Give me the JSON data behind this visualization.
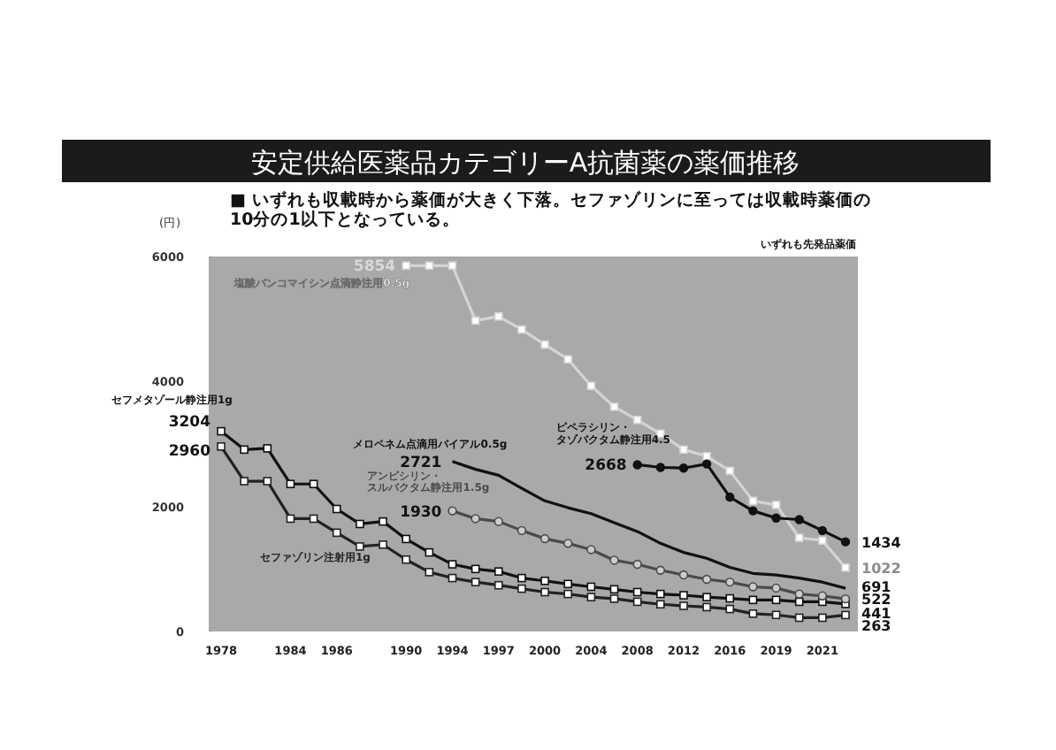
{
  "chart_data": {
    "type": "line",
    "title": "安定供給医薬品カテゴリーA抗菌薬の薬価推移",
    "ylabel": "(円)",
    "annotations": [
      "■ いずれも収載時から薬価が大きく下落。セファゾリンに至っては収載時薬価の\n10分の1以下となっている。",
      "いずれも先発品薬価"
    ],
    "categories": [
      "1978",
      null,
      null,
      "1984",
      null,
      "1986",
      null,
      null,
      "1990",
      null,
      "1994",
      null,
      "1997",
      null,
      "2000",
      null,
      "2004",
      null,
      "2008",
      null,
      "2012",
      null,
      "2016",
      null,
      "2019",
      null,
      "2021",
      null
    ],
    "ylim": [
      0,
      6000
    ],
    "yticks": [
      0,
      2000,
      4000,
      6000
    ],
    "grid": false,
    "marker": "square",
    "series": [
      {
        "name": "塩酸バンコマイシン点滴静注用0.5g",
        "color": "#d4d4d4",
        "values": [
          null,
          null,
          null,
          null,
          null,
          null,
          null,
          null,
          5854,
          5854,
          5854,
          4975,
          5040,
          4830,
          4590,
          4355,
          3930,
          3595,
          3385,
          3165,
          2910,
          2805,
          2570,
          2090,
          2025,
          1500,
          1455,
          1022
        ],
        "value_labels": [
          null,
          null,
          null,
          null,
          null,
          null,
          null,
          null,
          "5854",
          null,
          null,
          null,
          null,
          null,
          null,
          null,
          null,
          null,
          null,
          null,
          null,
          null,
          null,
          null,
          null,
          null,
          null,
          "1022"
        ]
      },
      {
        "name": "セフメタゾール静注用1g",
        "color": "#111111",
        "values": [
          3204,
          2910,
          2930,
          2360,
          2360,
          1960,
          1720,
          1760,
          1480,
          1265,
          1075,
          1000,
          960,
          855,
          810,
          760,
          715,
          675,
          630,
          600,
          580,
          550,
          530,
          505,
          505,
          475,
          475,
          441
        ],
        "value_labels": [
          "3204",
          null,
          null,
          null,
          null,
          null,
          null,
          null,
          null,
          null,
          null,
          null,
          null,
          null,
          null,
          null,
          null,
          null,
          null,
          null,
          null,
          null,
          null,
          null,
          null,
          null,
          null,
          "441"
        ]
      },
      {
        "name": "セファゾリン注射用1g",
        "color": "#222222",
        "values": [
          2960,
          2405,
          2405,
          1805,
          1805,
          1580,
          1360,
          1390,
          1150,
          950,
          855,
          790,
          740,
          685,
          630,
          600,
          550,
          525,
          475,
          435,
          410,
          390,
          360,
          285,
          265,
          220,
          220,
          263
        ],
        "value_labels": [
          "2960",
          null,
          null,
          null,
          null,
          null,
          null,
          null,
          null,
          null,
          null,
          null,
          null,
          null,
          null,
          null,
          null,
          null,
          null,
          null,
          null,
          null,
          null,
          null,
          null,
          null,
          null,
          "263"
        ]
      },
      {
        "name": "メロペネム点滴用バイアル0.5g",
        "color": "#111111",
        "marker": "none",
        "values": [
          null,
          null,
          null,
          null,
          null,
          null,
          null,
          null,
          null,
          null,
          2721,
          2595,
          2500,
          2290,
          2090,
          1980,
          1885,
          1740,
          1600,
          1410,
          1265,
          1170,
          1025,
          930,
          905,
          855,
          790,
          691
        ],
        "value_labels": [
          null,
          null,
          null,
          null,
          null,
          null,
          null,
          null,
          null,
          null,
          "2721",
          null,
          null,
          null,
          null,
          null,
          null,
          null,
          null,
          null,
          null,
          null,
          null,
          null,
          null,
          null,
          null,
          "691"
        ]
      },
      {
        "name": "アンピシリン・スルバクタム静注用1.5g",
        "color": "#4a4a4a",
        "marker": "circle",
        "values": [
          null,
          null,
          null,
          null,
          null,
          null,
          null,
          null,
          null,
          null,
          1930,
          1805,
          1760,
          1615,
          1485,
          1410,
          1310,
          1140,
          1075,
          980,
          905,
          835,
          790,
          715,
          695,
          600,
          570,
          522
        ],
        "value_labels": [
          null,
          null,
          null,
          null,
          null,
          null,
          null,
          null,
          null,
          null,
          "1930",
          null,
          null,
          null,
          null,
          null,
          null,
          null,
          null,
          null,
          null,
          null,
          null,
          null,
          null,
          null,
          null,
          "522"
        ]
      },
      {
        "name": "ピペラシリン・タゾバクタム静注用4.5",
        "color": "#111111",
        "marker": "circle",
        "values": [
          null,
          null,
          null,
          null,
          null,
          null,
          null,
          null,
          null,
          null,
          null,
          null,
          null,
          null,
          null,
          null,
          null,
          null,
          2668,
          2625,
          2615,
          2680,
          2150,
          1930,
          1815,
          1790,
          1615,
          1434
        ],
        "value_labels": [
          null,
          null,
          null,
          null,
          null,
          null,
          null,
          null,
          null,
          null,
          null,
          null,
          null,
          null,
          null,
          null,
          null,
          null,
          "2668",
          null,
          null,
          null,
          null,
          null,
          null,
          null,
          null,
          "1434"
        ]
      }
    ]
  }
}
